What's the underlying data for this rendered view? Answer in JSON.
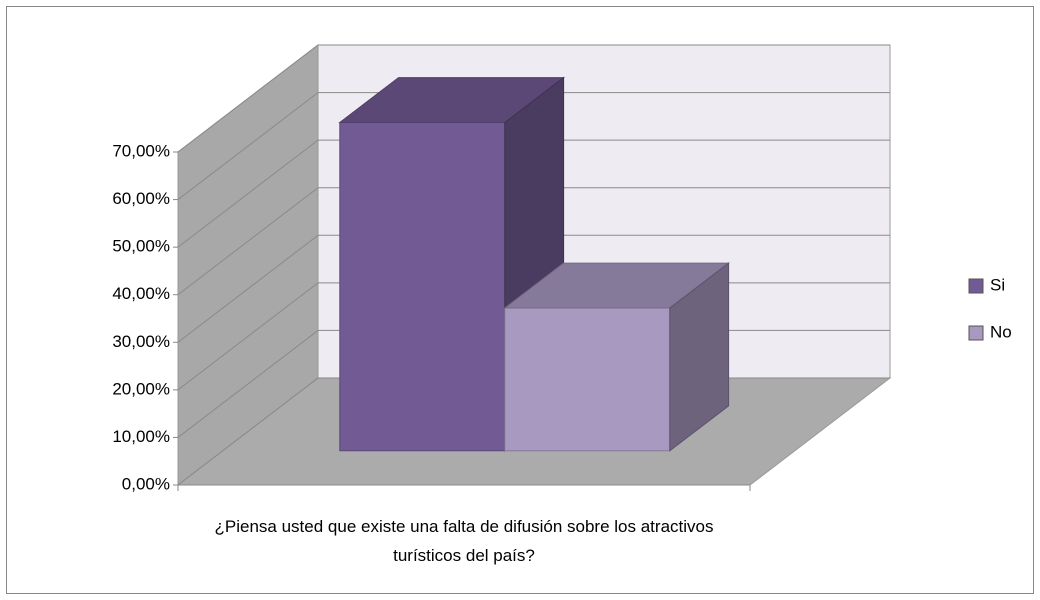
{
  "chart_data": {
    "type": "bar3d",
    "categories": [
      "¿Piensa usted que existe una falta de difusión sobre los atractivos turísticos del país?"
    ],
    "series": [
      {
        "name": "Si",
        "color": "#725a94",
        "values": [
          69
        ]
      },
      {
        "name": "No",
        "color": "#a899c0",
        "values": [
          30
        ]
      }
    ],
    "ylim": [
      0,
      70
    ],
    "yticks": [
      {
        "value": 0,
        "label": "0,00%"
      },
      {
        "value": 10,
        "label": "10,00%"
      },
      {
        "value": 20,
        "label": "20,00%"
      },
      {
        "value": 30,
        "label": "30,00%"
      },
      {
        "value": 40,
        "label": "40,00%"
      },
      {
        "value": 50,
        "label": "50,00%"
      },
      {
        "value": 60,
        "label": "60,00%"
      },
      {
        "value": 70,
        "label": "70,00%"
      }
    ],
    "grid": true,
    "legend": "right"
  }
}
